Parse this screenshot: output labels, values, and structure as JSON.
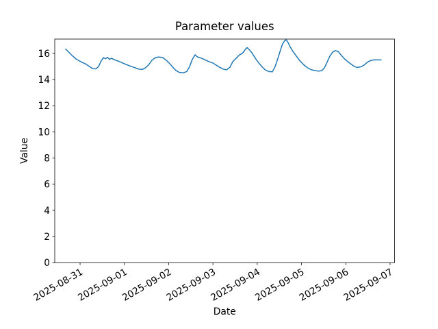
{
  "chart_data": {
    "type": "line",
    "title": "Parameter values",
    "xlabel": "Date",
    "ylabel": "Value",
    "x_tick_labels": [
      "2025-08-31",
      "2025-09-01",
      "2025-09-02",
      "2025-09-03",
      "2025-09-04",
      "2025-09-05",
      "2025-09-06",
      "2025-09-07"
    ],
    "y_tick_labels": [
      "0",
      "2",
      "4",
      "6",
      "8",
      "10",
      "12",
      "14",
      "16"
    ],
    "y_ticks": [
      0,
      2,
      4,
      6,
      8,
      10,
      12,
      14,
      16
    ],
    "ylim": [
      0,
      17.1
    ],
    "xlim_days": [
      -0.572,
      7.101
    ],
    "grid": false,
    "legend": "none",
    "line_color": "#1f77b4",
    "line_width": 1.5,
    "series": [
      {
        "name": "parameter",
        "x_unit": "days since 2025-08-31",
        "points": [
          [
            -0.325,
            16.33
          ],
          [
            -0.247,
            16.07
          ],
          [
            -0.17,
            15.81
          ],
          [
            -0.093,
            15.58
          ],
          [
            0.015,
            15.37
          ],
          [
            0.124,
            15.2
          ],
          [
            0.216,
            14.99
          ],
          [
            0.278,
            14.85
          ],
          [
            0.355,
            14.82
          ],
          [
            0.417,
            15.0
          ],
          [
            0.479,
            15.45
          ],
          [
            0.526,
            15.68
          ],
          [
            0.572,
            15.6
          ],
          [
            0.618,
            15.7
          ],
          [
            0.665,
            15.55
          ],
          [
            0.711,
            15.63
          ],
          [
            0.773,
            15.52
          ],
          [
            0.85,
            15.43
          ],
          [
            0.974,
            15.25
          ],
          [
            1.097,
            15.08
          ],
          [
            1.221,
            14.93
          ],
          [
            1.329,
            14.8
          ],
          [
            1.406,
            14.78
          ],
          [
            1.468,
            14.88
          ],
          [
            1.546,
            15.12
          ],
          [
            1.623,
            15.48
          ],
          [
            1.7,
            15.68
          ],
          [
            1.777,
            15.73
          ],
          [
            1.87,
            15.68
          ],
          [
            1.947,
            15.48
          ],
          [
            2.025,
            15.22
          ],
          [
            2.102,
            14.92
          ],
          [
            2.164,
            14.7
          ],
          [
            2.241,
            14.55
          ],
          [
            2.334,
            14.52
          ],
          [
            2.411,
            14.62
          ],
          [
            2.473,
            15.0
          ],
          [
            2.535,
            15.55
          ],
          [
            2.597,
            15.9
          ],
          [
            2.643,
            15.75
          ],
          [
            2.705,
            15.68
          ],
          [
            2.798,
            15.55
          ],
          [
            2.906,
            15.38
          ],
          [
            2.999,
            15.27
          ],
          [
            3.076,
            15.1
          ],
          [
            3.153,
            14.94
          ],
          [
            3.231,
            14.8
          ],
          [
            3.308,
            14.75
          ],
          [
            3.385,
            14.95
          ],
          [
            3.447,
            15.37
          ],
          [
            3.524,
            15.63
          ],
          [
            3.601,
            15.9
          ],
          [
            3.648,
            15.97
          ],
          [
            3.694,
            16.12
          ],
          [
            3.741,
            16.35
          ],
          [
            3.772,
            16.45
          ],
          [
            3.818,
            16.3
          ],
          [
            3.88,
            16.05
          ],
          [
            3.957,
            15.63
          ],
          [
            4.034,
            15.28
          ],
          [
            4.112,
            14.97
          ],
          [
            4.189,
            14.72
          ],
          [
            4.266,
            14.62
          ],
          [
            4.343,
            14.6
          ],
          [
            4.405,
            15.0
          ],
          [
            4.467,
            15.62
          ],
          [
            4.529,
            16.3
          ],
          [
            4.575,
            16.75
          ],
          [
            4.622,
            16.98
          ],
          [
            4.652,
            17.05
          ],
          [
            4.699,
            16.82
          ],
          [
            4.745,
            16.5
          ],
          [
            4.807,
            16.15
          ],
          [
            4.884,
            15.8
          ],
          [
            4.961,
            15.45
          ],
          [
            5.054,
            15.12
          ],
          [
            5.147,
            14.88
          ],
          [
            5.224,
            14.75
          ],
          [
            5.301,
            14.7
          ],
          [
            5.379,
            14.65
          ],
          [
            5.456,
            14.68
          ],
          [
            5.518,
            14.9
          ],
          [
            5.58,
            15.35
          ],
          [
            5.641,
            15.8
          ],
          [
            5.703,
            16.1
          ],
          [
            5.765,
            16.22
          ],
          [
            5.827,
            16.15
          ],
          [
            5.889,
            15.9
          ],
          [
            5.966,
            15.6
          ],
          [
            6.043,
            15.38
          ],
          [
            6.12,
            15.18
          ],
          [
            6.198,
            15.0
          ],
          [
            6.259,
            14.93
          ],
          [
            6.337,
            14.97
          ],
          [
            6.414,
            15.11
          ],
          [
            6.491,
            15.34
          ],
          [
            6.568,
            15.47
          ],
          [
            6.646,
            15.51
          ],
          [
            6.8,
            15.51
          ]
        ]
      }
    ]
  }
}
